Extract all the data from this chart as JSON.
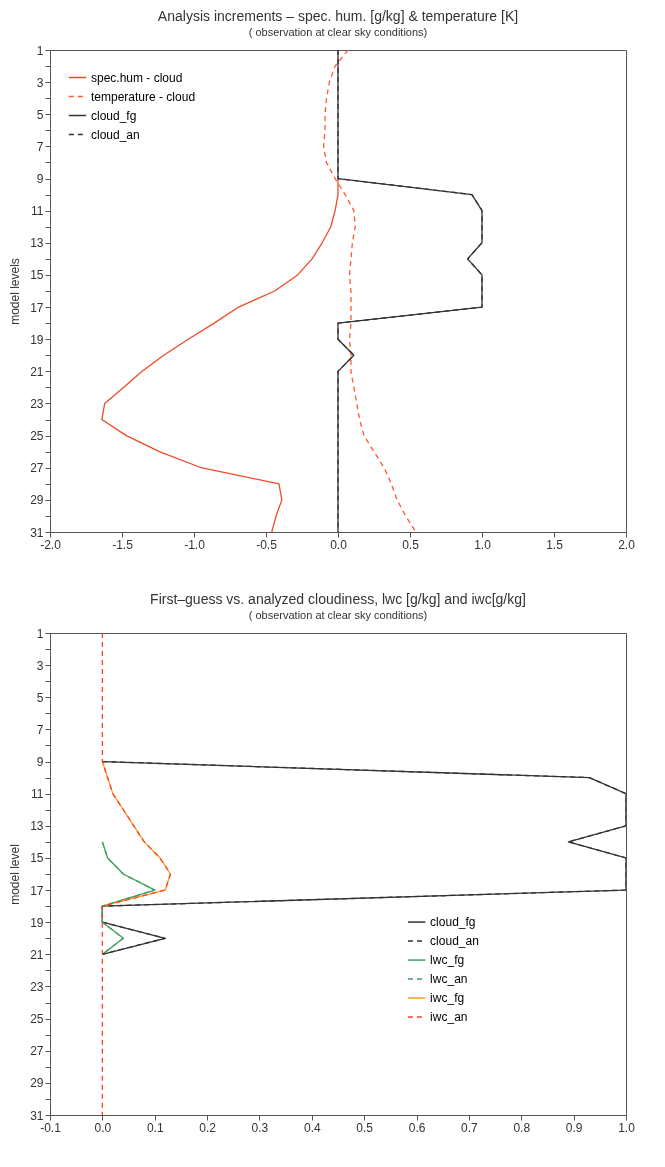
{
  "chart_data": [
    {
      "type": "line",
      "title": "Analysis increments – spec. hum. [g/kg] & temperature [K]",
      "subtitle": "( observation at clear sky conditions)",
      "ylabel": "model levels",
      "legend": "top left",
      "xlim": [
        -2,
        2
      ],
      "xticks": [
        {
          "value": -2,
          "label": "-2.0"
        },
        {
          "value": -1.5,
          "label": "-1.5"
        },
        {
          "value": -1,
          "label": "-1.0"
        },
        {
          "value": -0.5,
          "label": "-0.5"
        },
        {
          "value": 0,
          "label": "0.0"
        },
        {
          "value": 0.5,
          "label": "0.5"
        },
        {
          "value": 1,
          "label": "1.0"
        },
        {
          "value": 1.5,
          "label": "1.5"
        },
        {
          "value": 2,
          "label": "2.0"
        }
      ],
      "ylim": [
        31,
        1
      ],
      "yticks": [
        1,
        {
          "value": 2,
          "label": null
        },
        3,
        {
          "value": 4,
          "label": null
        },
        5,
        {
          "value": 6,
          "label": null
        },
        7,
        {
          "value": 8,
          "label": null
        },
        9,
        {
          "value": 10,
          "label": null
        },
        11,
        {
          "value": 12,
          "label": null
        },
        13,
        {
          "value": 14,
          "label": null
        },
        15,
        {
          "value": 16,
          "label": null
        },
        17,
        {
          "value": 18,
          "label": null
        },
        19,
        {
          "value": 20,
          "label": null
        },
        21,
        {
          "value": 22,
          "label": null
        },
        23,
        {
          "value": 24,
          "label": null
        },
        25,
        {
          "value": 26,
          "label": null
        },
        27,
        {
          "value": 28,
          "label": null
        },
        29,
        {
          "value": 30,
          "label": null
        },
        31
      ],
      "series": [
        {
          "name": "spec.hum - cloud",
          "color": "#f04a28",
          "line_style": "solid",
          "x": [
            null,
            null,
            null,
            null,
            null,
            null,
            null,
            null,
            0,
            0,
            -0.02,
            -0.05,
            -0.11,
            -0.18,
            -0.28,
            -0.44,
            -0.69,
            -0.86,
            -1.04,
            -1.21,
            -1.36,
            -1.49,
            -1.62,
            -1.64,
            -1.47,
            -1.24,
            -0.95,
            -0.41,
            -0.39,
            -0.43,
            -0.46
          ],
          "values": [
            null,
            null,
            null,
            null,
            null,
            null,
            null,
            null,
            9,
            10,
            11,
            12,
            13,
            14,
            15,
            16,
            17,
            18,
            19,
            20,
            21,
            22,
            23,
            24,
            25,
            26,
            27,
            28,
            29,
            30,
            31
          ]
        },
        {
          "name": "temperature - cloud",
          "color": "#ff5a30",
          "line_style": "dashed",
          "x": [
            0.07,
            -0.02,
            -0.06,
            -0.08,
            -0.09,
            -0.09,
            -0.1,
            -0.08,
            -0.02,
            0.05,
            0.11,
            0.12,
            0.1,
            0.09,
            0.08,
            0.09,
            0.09,
            0.09,
            0.08,
            0.09,
            0.09,
            0.11,
            0.13,
            0.15,
            0.18,
            0.25,
            0.32,
            0.37,
            0.41,
            0.47,
            0.54
          ],
          "values": [
            1,
            2,
            3,
            4,
            5,
            6,
            7,
            8,
            9,
            10,
            11,
            12,
            13,
            14,
            15,
            16,
            17,
            18,
            19,
            20,
            21,
            22,
            23,
            24,
            25,
            26,
            27,
            28,
            29,
            30,
            31
          ]
        },
        {
          "name": "cloud_fg",
          "color": "#333333",
          "line_style": "solid",
          "x": [
            0,
            0,
            0,
            0,
            0,
            0,
            0,
            0,
            0,
            0.93,
            1,
            1,
            1,
            0.9,
            1,
            1,
            1,
            0,
            0,
            0.11,
            0,
            0,
            0,
            0,
            0,
            0,
            0,
            0,
            0,
            0,
            0
          ],
          "values": [
            1,
            2,
            3,
            4,
            5,
            6,
            7,
            8,
            9,
            10,
            11,
            12,
            13,
            14,
            15,
            16,
            17,
            18,
            19,
            20,
            21,
            22,
            23,
            24,
            25,
            26,
            27,
            28,
            29,
            30,
            31
          ]
        },
        {
          "name": "cloud_an",
          "color": "#333333",
          "line_style": "dashed",
          "x": [
            0,
            0,
            0,
            0,
            0,
            0,
            0,
            0,
            0,
            0.93,
            1,
            1,
            1,
            0.9,
            1,
            1,
            1,
            0,
            0,
            0.11,
            0,
            0,
            0,
            0,
            0,
            0,
            0,
            0,
            0,
            0,
            0
          ],
          "values": [
            1,
            2,
            3,
            4,
            5,
            6,
            7,
            8,
            9,
            10,
            11,
            12,
            13,
            14,
            15,
            16,
            17,
            18,
            19,
            20,
            21,
            22,
            23,
            24,
            25,
            26,
            27,
            28,
            29,
            30,
            31
          ]
        }
      ]
    },
    {
      "type": "line",
      "title": "First–guess vs. analyzed cloudiness, lwc [g/kg] and iwc[g/kg]",
      "subtitle": "( observation at  clear sky conditions)",
      "ylabel": "model level",
      "legend": "bottom right",
      "xlim": [
        -0.1,
        1
      ],
      "xticks": [
        {
          "value": -0.1,
          "label": "-0.1"
        },
        {
          "value": 0,
          "label": "0.0"
        },
        0.1,
        0.2,
        0.3,
        0.4,
        0.5,
        0.6,
        0.7,
        0.8,
        0.9,
        {
          "value": 1,
          "label": "1.0"
        }
      ],
      "ylim": [
        31,
        1
      ],
      "yticks": [
        1,
        {
          "value": 2,
          "label": null
        },
        3,
        {
          "value": 4,
          "label": null
        },
        5,
        {
          "value": 6,
          "label": null
        },
        7,
        {
          "value": 8,
          "label": null
        },
        9,
        {
          "value": 10,
          "label": null
        },
        11,
        {
          "value": 12,
          "label": null
        },
        13,
        {
          "value": 14,
          "label": null
        },
        15,
        {
          "value": 16,
          "label": null
        },
        17,
        {
          "value": 18,
          "label": null
        },
        19,
        {
          "value": 20,
          "label": null
        },
        21,
        {
          "value": 22,
          "label": null
        },
        23,
        {
          "value": 24,
          "label": null
        },
        25,
        {
          "value": 26,
          "label": null
        },
        27,
        {
          "value": 28,
          "label": null
        },
        29,
        {
          "value": 30,
          "label": null
        },
        31
      ],
      "series": [
        {
          "name": "cloud_fg",
          "color": "#333333",
          "line_style": "solid",
          "x": [
            null,
            null,
            null,
            null,
            null,
            null,
            null,
            null,
            0,
            0.93,
            1,
            1,
            1,
            0.89,
            1,
            1,
            1,
            0,
            0,
            0.12,
            0,
            null,
            null,
            null,
            null,
            null,
            null,
            null,
            null,
            null,
            null
          ],
          "values": [
            null,
            null,
            null,
            null,
            null,
            null,
            null,
            null,
            9,
            10,
            11,
            12,
            13,
            14,
            15,
            16,
            17,
            18,
            19,
            20,
            21,
            null,
            null,
            null,
            null,
            null,
            null,
            null,
            null,
            null,
            null
          ]
        },
        {
          "name": "cloud_an",
          "color": "#333333",
          "line_style": "dashed",
          "x": [
            null,
            null,
            null,
            null,
            null,
            null,
            null,
            null,
            0,
            0.93,
            1,
            1,
            1,
            0.89,
            1,
            1,
            1,
            0,
            0,
            0.12,
            0,
            null,
            null,
            null,
            null,
            null,
            null,
            null,
            null,
            null,
            null
          ],
          "values": [
            null,
            null,
            null,
            null,
            null,
            null,
            null,
            null,
            9,
            10,
            11,
            12,
            13,
            14,
            15,
            16,
            17,
            18,
            19,
            20,
            21,
            null,
            null,
            null,
            null,
            null,
            null,
            null,
            null,
            null,
            null
          ]
        },
        {
          "name": "lwc_fg",
          "color": "#3aa060",
          "line_style": "solid",
          "x": [
            null,
            null,
            null,
            null,
            null,
            null,
            null,
            null,
            null,
            null,
            null,
            null,
            null,
            0,
            0.01,
            0.04,
            0.1,
            0,
            0,
            0.04,
            0,
            null,
            null,
            null,
            null,
            null,
            null,
            null,
            null,
            null,
            null
          ],
          "values": [
            null,
            null,
            null,
            null,
            null,
            null,
            null,
            null,
            null,
            null,
            null,
            null,
            null,
            14,
            15,
            16,
            17,
            18,
            19,
            20,
            21,
            null,
            null,
            null,
            null,
            null,
            null,
            null,
            null,
            null,
            null
          ]
        },
        {
          "name": "lwc_an",
          "color": "#3aa060",
          "line_style": "dashed",
          "x": [
            null,
            null,
            null,
            null,
            null,
            null,
            null,
            null,
            null,
            null,
            null,
            null,
            null,
            0,
            0.01,
            0.04,
            0.1,
            0,
            0,
            0.04,
            0,
            null,
            null,
            null,
            null,
            null,
            null,
            null,
            null,
            null,
            null
          ],
          "values": [
            null,
            null,
            null,
            null,
            null,
            null,
            null,
            null,
            null,
            null,
            null,
            null,
            null,
            14,
            15,
            16,
            17,
            18,
            19,
            20,
            21,
            null,
            null,
            null,
            null,
            null,
            null,
            null,
            null,
            null,
            null
          ]
        },
        {
          "name": "iwc_fg",
          "color": "#ff9a1a",
          "line_style": "solid",
          "x": [
            null,
            null,
            null,
            null,
            null,
            null,
            null,
            null,
            0,
            0.01,
            0.02,
            0.04,
            0.06,
            0.08,
            0.11,
            0.13,
            0.12,
            0,
            null,
            null,
            null,
            null,
            null,
            null,
            null,
            null,
            null,
            null,
            null,
            null,
            null
          ],
          "values": [
            null,
            null,
            null,
            null,
            null,
            null,
            null,
            null,
            9,
            10,
            11,
            12,
            13,
            14,
            15,
            16,
            17,
            18,
            null,
            null,
            null,
            null,
            null,
            null,
            null,
            null,
            null,
            null,
            null,
            null,
            null
          ]
        },
        {
          "name": "iwc_an",
          "color": "#ff4028",
          "line_style": "dashed",
          "x": [
            0,
            0,
            0,
            0,
            0,
            0,
            0,
            0,
            0,
            0.01,
            0.02,
            0.04,
            0.06,
            0.08,
            0.11,
            0.13,
            0.12,
            0,
            0,
            0,
            0,
            0,
            0,
            0,
            0,
            0,
            0,
            0,
            0,
            0,
            0
          ],
          "values": [
            1,
            2,
            3,
            4,
            5,
            6,
            7,
            8,
            9,
            10,
            11,
            12,
            13,
            14,
            15,
            16,
            17,
            18,
            19,
            20,
            21,
            22,
            23,
            24,
            25,
            26,
            27,
            28,
            29,
            30,
            31
          ]
        }
      ]
    }
  ]
}
